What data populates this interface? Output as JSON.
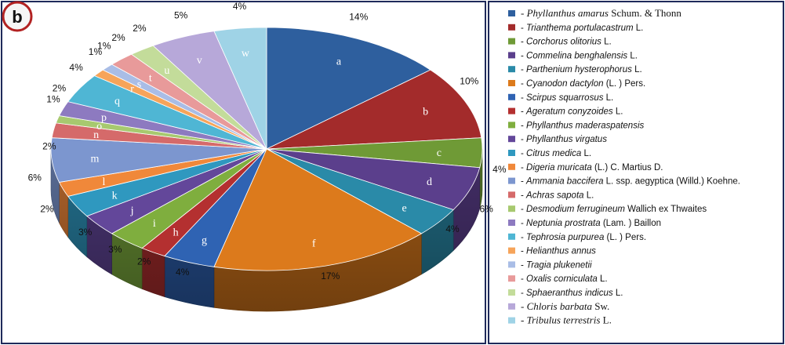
{
  "panel_label": "b",
  "chart_data": {
    "type": "pie",
    "subtype": "3d-exploded-pie",
    "legend_position": "right",
    "slices": [
      {
        "key": "a",
        "value": 14,
        "label": "14%",
        "color": "#2e5f9e",
        "species": "Phyllanthus amarus",
        "authority": "Schum. & Thonn",
        "serif": true
      },
      {
        "key": "b",
        "value": 10,
        "label": "10%",
        "color": "#a32b2b",
        "species": "Trianthema portulacastrum",
        "authority": "L."
      },
      {
        "key": "c",
        "value": 4,
        "label": "4%",
        "color": "#6f9a36",
        "species": "Corchorus olitorius",
        "authority": "L."
      },
      {
        "key": "d",
        "value": 6,
        "label": "6%",
        "color": "#5b3f8c",
        "species": "Commelina benghalensis",
        "authority": "L."
      },
      {
        "key": "e",
        "value": 4,
        "label": "4%",
        "color": "#2a8aa8",
        "species": "Parthenium hysterophorus",
        "authority": "L."
      },
      {
        "key": "f",
        "value": 17,
        "label": "17%",
        "color": "#dc7a1c",
        "species": "Cyanodon dactylon",
        "authority": "(L. ) Pers."
      },
      {
        "key": "g",
        "value": 4,
        "label": "4%",
        "color": "#2f63b3",
        "species": "Scirpus squarrosus",
        "authority": "L."
      },
      {
        "key": "h",
        "value": 2,
        "label": "2%",
        "color": "#b43030",
        "species": "Ageratum conyzoides",
        "authority": "L."
      },
      {
        "key": "i",
        "value": 3,
        "label": "3%",
        "color": "#7fae3e",
        "species": "Phyllanthus maderaspatensis",
        "authority": ""
      },
      {
        "key": "j",
        "value": 3,
        "label": "3%",
        "color": "#63479a",
        "species": "Phyllanthus virgatus",
        "authority": ""
      },
      {
        "key": "k",
        "value": 3,
        "label": "",
        "color": "#2f98bf",
        "species": "Citrus medica",
        "authority": "L."
      },
      {
        "key": "l",
        "value": 2,
        "label": "2%",
        "color": "#f0883a",
        "species": "Digeria muricata",
        "authority": "(L.) C. Martius D."
      },
      {
        "key": "m",
        "value": 6,
        "label": "6%",
        "color": "#7c96cf",
        "species": "Ammania baccifera",
        "authority": "L. ssp.  aegyptica (Willd.) Koehne."
      },
      {
        "key": "n",
        "value": 2,
        "label": "2%",
        "color": "#d56a6a",
        "species": "Achras sapota",
        "authority": "L."
      },
      {
        "key": "o",
        "value": 1,
        "label": "1%",
        "color": "#a7c96f",
        "species": "Desmodium ferrugineum",
        "authority": "Wallich ex Thwaites"
      },
      {
        "key": "p",
        "value": 2,
        "label": "2%",
        "color": "#8d7ac0",
        "species": "Neptunia prostrata",
        "authority": "(Lam. ) Baillon"
      },
      {
        "key": "q",
        "value": 4,
        "label": "4%",
        "color": "#4fb6d4",
        "species": "Tephrosia purpurea",
        "authority": "(L. ) Pers."
      },
      {
        "key": "r",
        "value": 1,
        "label": "1%",
        "color": "#f6a45a",
        "species": "Helianthus annus",
        "authority": ""
      },
      {
        "key": "s",
        "value": 1,
        "label": "1%",
        "color": "#a9bde6",
        "species": "Tragia plukenetii",
        "authority": ""
      },
      {
        "key": "t",
        "value": 2,
        "label": "2%",
        "color": "#e89a9a",
        "species": "Oxalis corniculata",
        "authority": "L."
      },
      {
        "key": "u",
        "value": 2,
        "label": "2%",
        "color": "#c3dc9a",
        "species": "Sphaeranthus indicus",
        "authority": "L."
      },
      {
        "key": "v",
        "value": 5,
        "label": "5%",
        "color": "#b7a8d9",
        "species": "Chloris barbata",
        "authority": "Sw.",
        "serif": true
      },
      {
        "key": "w",
        "value": 4,
        "label": "4%",
        "color": "#9fd3e6",
        "species": "Tribulus terrestris",
        "authority": "L.",
        "serif": true
      }
    ]
  }
}
